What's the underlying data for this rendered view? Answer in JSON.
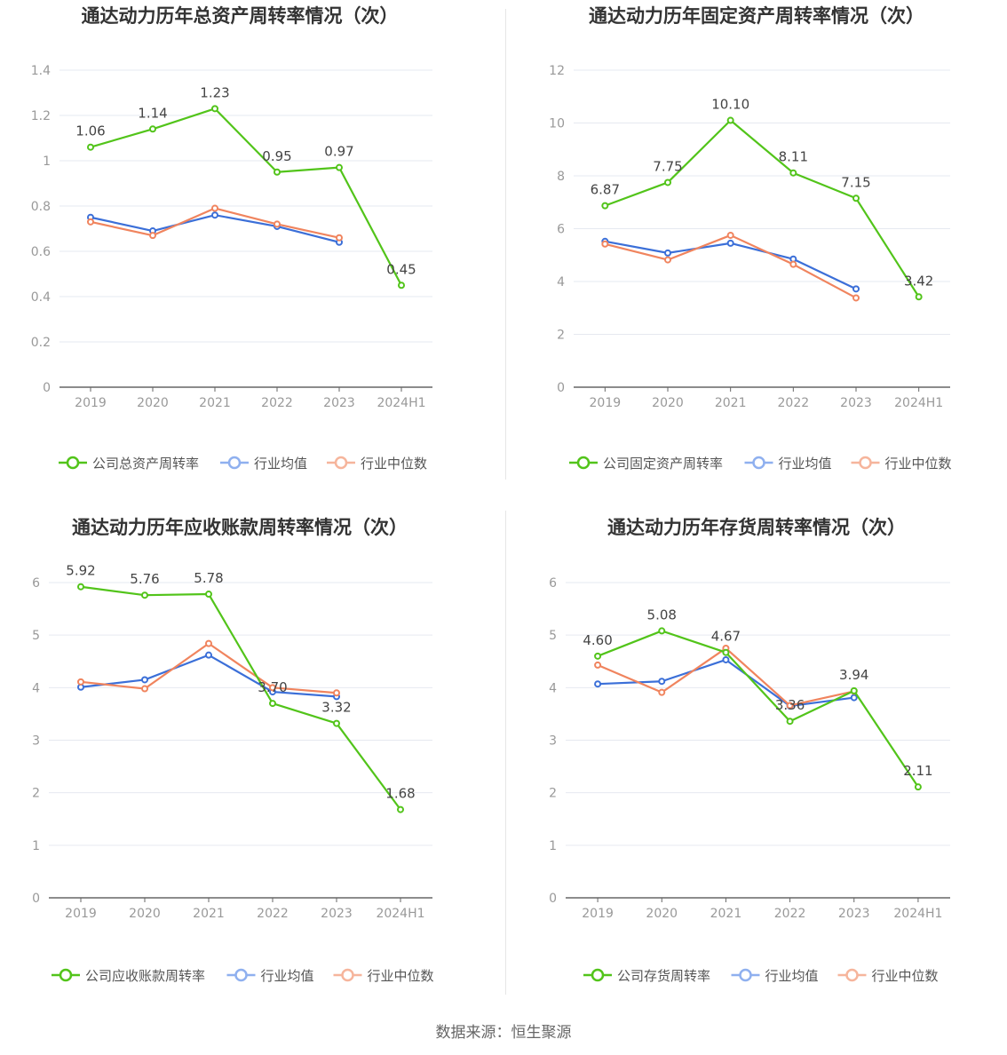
{
  "colors": {
    "company": "#52c41a",
    "avg": "#3b6fd8",
    "median": "#f0845e",
    "grid": "#e6e9f0",
    "axis": "#666666",
    "label": "#999999",
    "title": "#333333"
  },
  "source": "数据来源：恒生聚源",
  "chart_data": [
    {
      "type": "line",
      "title": "通达动力历年总资产周转率情况（次）",
      "categories": [
        "2019",
        "2020",
        "2021",
        "2022",
        "2023",
        "2024H1"
      ],
      "ylim": [
        0,
        1.4
      ],
      "yticks": [
        0,
        0.2,
        0.4,
        0.6,
        0.8,
        1,
        1.2,
        1.4
      ],
      "series": [
        {
          "name": "公司总资产周转率",
          "key": "company",
          "labels": true,
          "values": [
            1.06,
            1.14,
            1.23,
            0.95,
            0.97,
            0.45
          ],
          "value_labels": [
            "1.06",
            "1.14",
            "1.23",
            "0.95",
            "0.97",
            "0.45"
          ]
        },
        {
          "name": "行业均值",
          "key": "avg",
          "values": [
            0.75,
            0.69,
            0.76,
            0.71,
            0.64,
            null
          ]
        },
        {
          "name": "行业中位数",
          "key": "median",
          "values": [
            0.73,
            0.67,
            0.79,
            0.72,
            0.66,
            null
          ]
        }
      ]
    },
    {
      "type": "line",
      "title": "通达动力历年固定资产周转率情况（次）",
      "categories": [
        "2019",
        "2020",
        "2021",
        "2022",
        "2023",
        "2024H1"
      ],
      "ylim": [
        0,
        12
      ],
      "yticks": [
        0,
        2,
        4,
        6,
        8,
        10,
        12
      ],
      "series": [
        {
          "name": "公司固定资产周转率",
          "key": "company",
          "labels": true,
          "values": [
            6.87,
            7.75,
            10.1,
            8.11,
            7.15,
            3.42
          ],
          "value_labels": [
            "6.87",
            "7.75",
            "10.10",
            "8.11",
            "7.15",
            "3.42"
          ]
        },
        {
          "name": "行业均值",
          "key": "avg",
          "values": [
            5.52,
            5.08,
            5.45,
            4.85,
            3.72,
            null
          ]
        },
        {
          "name": "行业中位数",
          "key": "median",
          "values": [
            5.42,
            4.82,
            5.75,
            4.65,
            3.38,
            null
          ]
        }
      ]
    },
    {
      "type": "line",
      "title": "通达动力历年应收账款周转率情况（次）",
      "categories": [
        "2019",
        "2020",
        "2021",
        "2022",
        "2023",
        "2024H1"
      ],
      "ylim": [
        0,
        6
      ],
      "yticks": [
        0,
        1,
        2,
        3,
        4,
        5,
        6
      ],
      "series": [
        {
          "name": "公司应收账款周转率",
          "key": "company",
          "labels": true,
          "values": [
            5.92,
            5.76,
            5.78,
            3.7,
            3.32,
            1.68
          ],
          "value_labels": [
            "5.92",
            "5.76",
            "5.78",
            "3.70",
            "3.32",
            "1.68"
          ]
        },
        {
          "name": "行业均值",
          "key": "avg",
          "values": [
            4.01,
            4.15,
            4.62,
            3.92,
            3.83,
            null
          ]
        },
        {
          "name": "行业中位数",
          "key": "median",
          "values": [
            4.11,
            3.98,
            4.84,
            4.0,
            3.9,
            null
          ]
        }
      ]
    },
    {
      "type": "line",
      "title": "通达动力历年存货周转率情况（次）",
      "categories": [
        "2019",
        "2020",
        "2021",
        "2022",
        "2023",
        "2024H1"
      ],
      "ylim": [
        0,
        6
      ],
      "yticks": [
        0,
        1,
        2,
        3,
        4,
        5,
        6
      ],
      "series": [
        {
          "name": "公司存货周转率",
          "key": "company",
          "labels": true,
          "values": [
            4.6,
            5.08,
            4.67,
            3.36,
            3.94,
            2.11
          ],
          "value_labels": [
            "4.60",
            "5.08",
            "4.67",
            "3.36",
            "3.94",
            "2.11"
          ]
        },
        {
          "name": "行业均值",
          "key": "avg",
          "values": [
            4.07,
            4.12,
            4.53,
            3.65,
            3.81,
            null
          ]
        },
        {
          "name": "行业中位数",
          "key": "median",
          "values": [
            4.43,
            3.91,
            4.75,
            3.66,
            3.93,
            null
          ]
        }
      ]
    }
  ]
}
